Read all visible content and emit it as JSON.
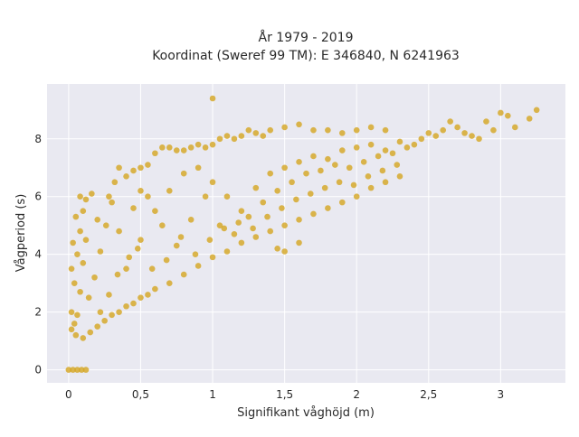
{
  "chart_data": {
    "type": "scatter",
    "title_line1": "År 1979 - 2019",
    "title_line2": "Koordinat (Sweref 99 TM): E 346840, N 6241963",
    "xlabel": "Signifikant våghöjd (m)",
    "ylabel": "Vågperiod (s)",
    "xlim": [
      -0.15,
      3.45
    ],
    "ylim": [
      -0.45,
      9.9
    ],
    "x_ticks": [
      {
        "value": 0,
        "label": "0"
      },
      {
        "value": 0.5,
        "label": "0,5"
      },
      {
        "value": 1,
        "label": "1"
      },
      {
        "value": 1.5,
        "label": "1,5"
      },
      {
        "value": 2,
        "label": "2"
      },
      {
        "value": 2.5,
        "label": "2,5"
      },
      {
        "value": 3,
        "label": "3"
      }
    ],
    "y_ticks": [
      {
        "value": 0,
        "label": "0"
      },
      {
        "value": 2,
        "label": "2"
      },
      {
        "value": 4,
        "label": "4"
      },
      {
        "value": 6,
        "label": "6"
      },
      {
        "value": 8,
        "label": "8"
      }
    ],
    "marker_color": "#d4a521",
    "plot_bg": "#e9e9f1",
    "grid": true,
    "series": [
      {
        "values": [
          {
            "x": 0.0,
            "y": 0.0
          },
          {
            "x": 0.03,
            "y": 0.0
          },
          {
            "x": 0.06,
            "y": 0.0
          },
          {
            "x": 0.09,
            "y": 0.0
          },
          {
            "x": 0.12,
            "y": 0.0
          },
          {
            "x": 0.02,
            "y": 1.4
          },
          {
            "x": 0.05,
            "y": 1.2
          },
          {
            "x": 0.1,
            "y": 1.1
          },
          {
            "x": 0.15,
            "y": 1.3
          },
          {
            "x": 0.2,
            "y": 1.5
          },
          {
            "x": 0.25,
            "y": 1.7
          },
          {
            "x": 0.3,
            "y": 1.9
          },
          {
            "x": 0.35,
            "y": 2.0
          },
          {
            "x": 0.4,
            "y": 2.2
          },
          {
            "x": 0.45,
            "y": 2.3
          },
          {
            "x": 0.5,
            "y": 2.5
          },
          {
            "x": 0.55,
            "y": 2.6
          },
          {
            "x": 0.6,
            "y": 2.8
          },
          {
            "x": 0.7,
            "y": 3.0
          },
          {
            "x": 0.8,
            "y": 3.3
          },
          {
            "x": 0.9,
            "y": 3.6
          },
          {
            "x": 1.0,
            "y": 3.9
          },
          {
            "x": 1.1,
            "y": 4.1
          },
          {
            "x": 1.2,
            "y": 4.4
          },
          {
            "x": 1.3,
            "y": 4.6
          },
          {
            "x": 1.4,
            "y": 4.8
          },
          {
            "x": 1.5,
            "y": 5.0
          },
          {
            "x": 1.6,
            "y": 5.2
          },
          {
            "x": 1.7,
            "y": 5.4
          },
          {
            "x": 1.8,
            "y": 5.6
          },
          {
            "x": 1.9,
            "y": 5.8
          },
          {
            "x": 2.0,
            "y": 6.0
          },
          {
            "x": 2.1,
            "y": 6.3
          },
          {
            "x": 2.2,
            "y": 6.5
          },
          {
            "x": 2.3,
            "y": 6.7
          },
          {
            "x": 0.02,
            "y": 2.0
          },
          {
            "x": 0.04,
            "y": 3.0
          },
          {
            "x": 0.06,
            "y": 4.0
          },
          {
            "x": 0.08,
            "y": 4.8
          },
          {
            "x": 0.1,
            "y": 5.5
          },
          {
            "x": 0.12,
            "y": 5.9
          },
          {
            "x": 0.08,
            "y": 6.0
          },
          {
            "x": 0.05,
            "y": 5.3
          },
          {
            "x": 0.03,
            "y": 4.4
          },
          {
            "x": 0.02,
            "y": 3.5
          },
          {
            "x": 0.14,
            "y": 2.5
          },
          {
            "x": 0.18,
            "y": 3.2
          },
          {
            "x": 0.22,
            "y": 4.1
          },
          {
            "x": 0.26,
            "y": 5.0
          },
          {
            "x": 0.3,
            "y": 5.8
          },
          {
            "x": 0.32,
            "y": 6.5
          },
          {
            "x": 0.4,
            "y": 6.7
          },
          {
            "x": 0.45,
            "y": 6.9
          },
          {
            "x": 0.5,
            "y": 7.0
          },
          {
            "x": 0.55,
            "y": 7.1
          },
          {
            "x": 0.6,
            "y": 7.5
          },
          {
            "x": 0.65,
            "y": 7.7
          },
          {
            "x": 0.7,
            "y": 7.7
          },
          {
            "x": 0.75,
            "y": 7.6
          },
          {
            "x": 0.8,
            "y": 7.6
          },
          {
            "x": 0.85,
            "y": 7.7
          },
          {
            "x": 0.9,
            "y": 7.8
          },
          {
            "x": 0.95,
            "y": 7.7
          },
          {
            "x": 1.0,
            "y": 7.8
          },
          {
            "x": 1.05,
            "y": 8.0
          },
          {
            "x": 1.1,
            "y": 8.1
          },
          {
            "x": 1.15,
            "y": 8.0
          },
          {
            "x": 1.2,
            "y": 8.1
          },
          {
            "x": 1.25,
            "y": 8.3
          },
          {
            "x": 1.3,
            "y": 8.2
          },
          {
            "x": 1.35,
            "y": 8.1
          },
          {
            "x": 1.4,
            "y": 8.3
          },
          {
            "x": 1.5,
            "y": 8.4
          },
          {
            "x": 1.6,
            "y": 8.5
          },
          {
            "x": 1.7,
            "y": 8.3
          },
          {
            "x": 1.8,
            "y": 8.3
          },
          {
            "x": 1.9,
            "y": 8.2
          },
          {
            "x": 2.0,
            "y": 8.3
          },
          {
            "x": 2.1,
            "y": 8.4
          },
          {
            "x": 2.2,
            "y": 8.3
          },
          {
            "x": 0.4,
            "y": 3.5
          },
          {
            "x": 0.5,
            "y": 4.5
          },
          {
            "x": 0.6,
            "y": 5.5
          },
          {
            "x": 0.7,
            "y": 6.2
          },
          {
            "x": 0.8,
            "y": 6.8
          },
          {
            "x": 0.9,
            "y": 7.0
          },
          {
            "x": 1.0,
            "y": 6.5
          },
          {
            "x": 1.1,
            "y": 6.0
          },
          {
            "x": 1.2,
            "y": 5.5
          },
          {
            "x": 1.3,
            "y": 6.3
          },
          {
            "x": 1.4,
            "y": 6.8
          },
          {
            "x": 1.5,
            "y": 7.0
          },
          {
            "x": 1.6,
            "y": 7.2
          },
          {
            "x": 1.7,
            "y": 7.4
          },
          {
            "x": 1.8,
            "y": 7.3
          },
          {
            "x": 1.9,
            "y": 7.6
          },
          {
            "x": 2.0,
            "y": 7.7
          },
          {
            "x": 2.1,
            "y": 7.8
          },
          {
            "x": 2.2,
            "y": 7.6
          },
          {
            "x": 2.3,
            "y": 7.9
          },
          {
            "x": 0.35,
            "y": 4.8
          },
          {
            "x": 0.45,
            "y": 5.6
          },
          {
            "x": 0.55,
            "y": 6.0
          },
          {
            "x": 0.65,
            "y": 5.0
          },
          {
            "x": 0.75,
            "y": 4.3
          },
          {
            "x": 0.85,
            "y": 5.2
          },
          {
            "x": 0.95,
            "y": 6.0
          },
          {
            "x": 1.05,
            "y": 5.0
          },
          {
            "x": 1.15,
            "y": 4.7
          },
          {
            "x": 1.25,
            "y": 5.3
          },
          {
            "x": 1.35,
            "y": 5.8
          },
          {
            "x": 1.45,
            "y": 6.2
          },
          {
            "x": 1.55,
            "y": 6.5
          },
          {
            "x": 1.65,
            "y": 6.8
          },
          {
            "x": 1.75,
            "y": 6.9
          },
          {
            "x": 1.85,
            "y": 7.1
          },
          {
            "x": 1.95,
            "y": 7.0
          },
          {
            "x": 2.05,
            "y": 7.2
          },
          {
            "x": 2.15,
            "y": 7.4
          },
          {
            "x": 2.25,
            "y": 7.5
          },
          {
            "x": 2.35,
            "y": 7.7
          },
          {
            "x": 2.4,
            "y": 7.8
          },
          {
            "x": 2.45,
            "y": 8.0
          },
          {
            "x": 2.5,
            "y": 8.2
          },
          {
            "x": 2.55,
            "y": 8.1
          },
          {
            "x": 2.6,
            "y": 8.3
          },
          {
            "x": 2.65,
            "y": 8.6
          },
          {
            "x": 2.7,
            "y": 8.4
          },
          {
            "x": 2.75,
            "y": 8.2
          },
          {
            "x": 2.8,
            "y": 8.1
          },
          {
            "x": 2.85,
            "y": 8.0
          },
          {
            "x": 2.9,
            "y": 8.6
          },
          {
            "x": 2.95,
            "y": 8.3
          },
          {
            "x": 3.0,
            "y": 8.9
          },
          {
            "x": 3.05,
            "y": 8.8
          },
          {
            "x": 3.1,
            "y": 8.4
          },
          {
            "x": 3.2,
            "y": 8.7
          },
          {
            "x": 3.25,
            "y": 9.0
          },
          {
            "x": 1.0,
            "y": 9.4
          },
          {
            "x": 1.6,
            "y": 4.4
          },
          {
            "x": 1.45,
            "y": 4.2
          },
          {
            "x": 1.5,
            "y": 4.1
          },
          {
            "x": 0.5,
            "y": 6.2
          },
          {
            "x": 0.35,
            "y": 7.0
          },
          {
            "x": 0.28,
            "y": 6.0
          },
          {
            "x": 0.2,
            "y": 5.2
          },
          {
            "x": 0.16,
            "y": 6.1
          },
          {
            "x": 0.12,
            "y": 4.5
          },
          {
            "x": 0.1,
            "y": 3.7
          },
          {
            "x": 0.08,
            "y": 2.7
          },
          {
            "x": 0.06,
            "y": 1.9
          },
          {
            "x": 0.04,
            "y": 1.6
          },
          {
            "x": 0.22,
            "y": 2.0
          },
          {
            "x": 0.28,
            "y": 2.6
          },
          {
            "x": 0.34,
            "y": 3.3
          },
          {
            "x": 0.42,
            "y": 3.9
          },
          {
            "x": 0.48,
            "y": 4.2
          },
          {
            "x": 0.58,
            "y": 3.5
          },
          {
            "x": 0.68,
            "y": 3.8
          },
          {
            "x": 0.78,
            "y": 4.6
          },
          {
            "x": 0.88,
            "y": 4.0
          },
          {
            "x": 0.98,
            "y": 4.5
          },
          {
            "x": 1.08,
            "y": 4.9
          },
          {
            "x": 1.18,
            "y": 5.1
          },
          {
            "x": 1.28,
            "y": 4.9
          },
          {
            "x": 1.38,
            "y": 5.3
          },
          {
            "x": 1.48,
            "y": 5.6
          },
          {
            "x": 1.58,
            "y": 5.9
          },
          {
            "x": 1.68,
            "y": 6.1
          },
          {
            "x": 1.78,
            "y": 6.3
          },
          {
            "x": 1.88,
            "y": 6.5
          },
          {
            "x": 1.98,
            "y": 6.4
          },
          {
            "x": 2.08,
            "y": 6.7
          },
          {
            "x": 2.18,
            "y": 6.9
          },
          {
            "x": 2.28,
            "y": 7.1
          }
        ]
      }
    ]
  }
}
